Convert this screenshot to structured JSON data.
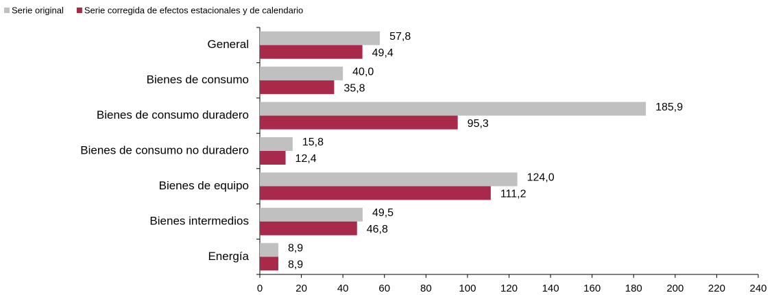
{
  "chart_data": {
    "type": "hbar",
    "categories": [
      "General",
      "Bienes de consumo",
      "Bienes de consumo duradero",
      "Bienes de consumo no duradero",
      "Bienes de equipo",
      "Bienes intermedios",
      "Energía"
    ],
    "series": [
      {
        "name": "Serie original",
        "color": "#c0c0c0",
        "values": [
          57.8,
          40.0,
          185.9,
          15.8,
          124.0,
          49.5,
          8.9
        ],
        "value_labels": [
          "57,8",
          "40,0",
          "185,9",
          "15,8",
          "124,0",
          "49,5",
          "8,9"
        ]
      },
      {
        "name": "Serie corregida de efectos estacionales y de calendario",
        "color": "#a8294a",
        "values": [
          49.4,
          35.8,
          95.3,
          12.4,
          111.2,
          46.8,
          8.9
        ],
        "value_labels": [
          "49,4",
          "35,8",
          "95,3",
          "12,4",
          "111,2",
          "46,8",
          "8,9"
        ]
      }
    ],
    "xlim": [
      0,
      240
    ],
    "xticks": [
      0,
      20,
      40,
      60,
      80,
      100,
      120,
      140,
      160,
      180,
      200,
      220,
      240
    ],
    "legend": "top-left"
  }
}
